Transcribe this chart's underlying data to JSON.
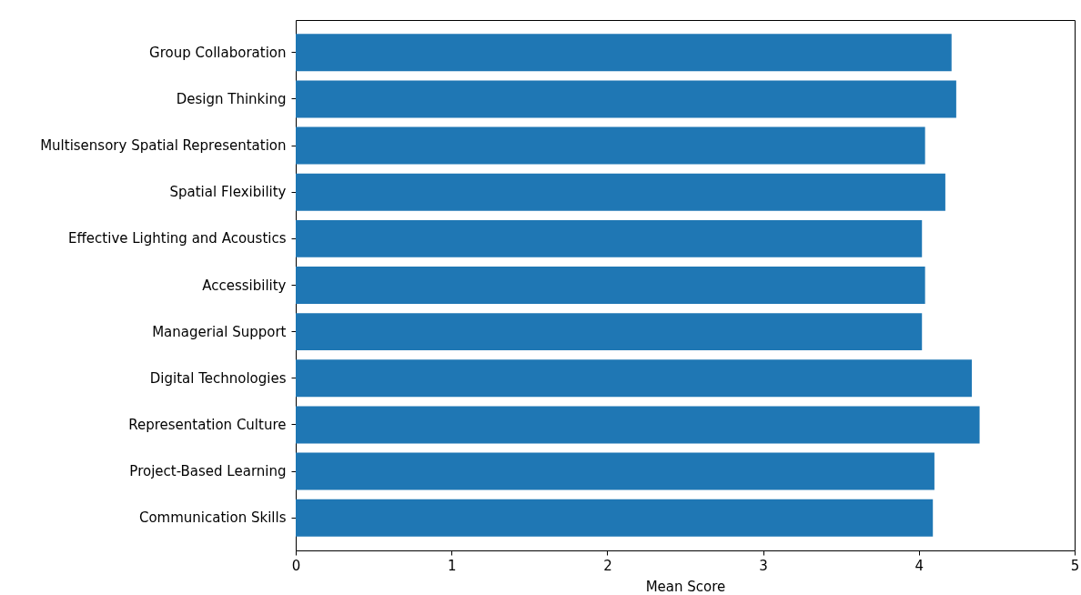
{
  "chart_data": {
    "type": "bar",
    "orientation": "horizontal",
    "xlabel": "Mean Score",
    "categories": [
      "Group Collaboration",
      "Design Thinking",
      "Multisensory Spatial Representation",
      "Spatial Flexibility",
      "Effective Lighting and Acoustics",
      "Accessibility",
      "Managerial Support",
      "Digital Technologies",
      "Representation Culture",
      "Project-Based Learning",
      "Communication Skills"
    ],
    "values": [
      4.21,
      4.24,
      4.04,
      4.17,
      4.02,
      4.04,
      4.02,
      4.34,
      4.39,
      4.1,
      4.09
    ],
    "color": "#1f77b4",
    "xlim": [
      0,
      5
    ],
    "xticks": [
      0,
      1,
      2,
      3,
      4,
      5
    ],
    "grid": false
  }
}
